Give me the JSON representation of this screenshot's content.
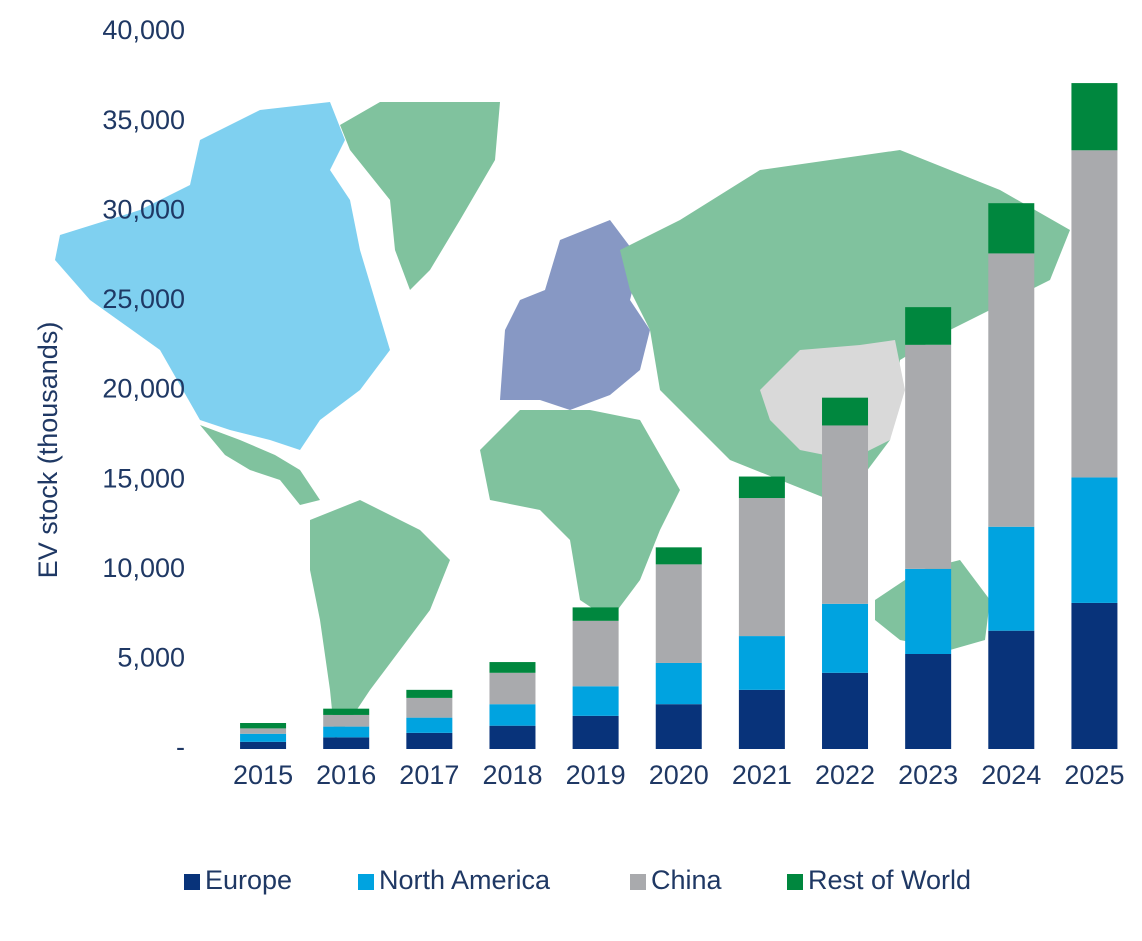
{
  "chart_data": {
    "type": "stacked_bar",
    "y_label": "EV stock (thousands)",
    "categories": [
      "2015",
      "2016",
      "2017",
      "2018",
      "2019",
      "2020",
      "2021",
      "2022",
      "2023",
      "2024",
      "2025"
    ],
    "series": [
      {
        "name": "Europe",
        "color": "#08337a",
        "values": [
          400,
          650,
          900,
          1300,
          1850,
          2500,
          3300,
          4250,
          5300,
          6600,
          8150
        ]
      },
      {
        "name": "North America",
        "color": "#00a3e0",
        "values": [
          450,
          600,
          850,
          1200,
          1650,
          2300,
          3000,
          3850,
          4750,
          5800,
          7000
        ]
      },
      {
        "name": "China",
        "color": "#a9aaad",
        "values": [
          300,
          650,
          1100,
          1750,
          3650,
          5500,
          7700,
          9950,
          12500,
          15250,
          18250
        ]
      },
      {
        "name": "Rest of World",
        "color": "#00873e",
        "values": [
          300,
          350,
          450,
          600,
          750,
          950,
          1200,
          1550,
          2100,
          2800,
          3750
        ]
      }
    ],
    "ylim": [
      0,
      40000
    ],
    "yticks": [
      {
        "value": 0,
        "label": "-"
      },
      {
        "value": 5000,
        "label": "5,000"
      },
      {
        "value": 10000,
        "label": "10,000"
      },
      {
        "value": 15000,
        "label": "15,000"
      },
      {
        "value": 20000,
        "label": "20,000"
      },
      {
        "value": 25000,
        "label": "25,000"
      },
      {
        "value": 30000,
        "label": "30,000"
      },
      {
        "value": 35000,
        "label": "35,000"
      },
      {
        "value": 40000,
        "label": "40,000"
      }
    ],
    "legend": "bottom"
  }
}
